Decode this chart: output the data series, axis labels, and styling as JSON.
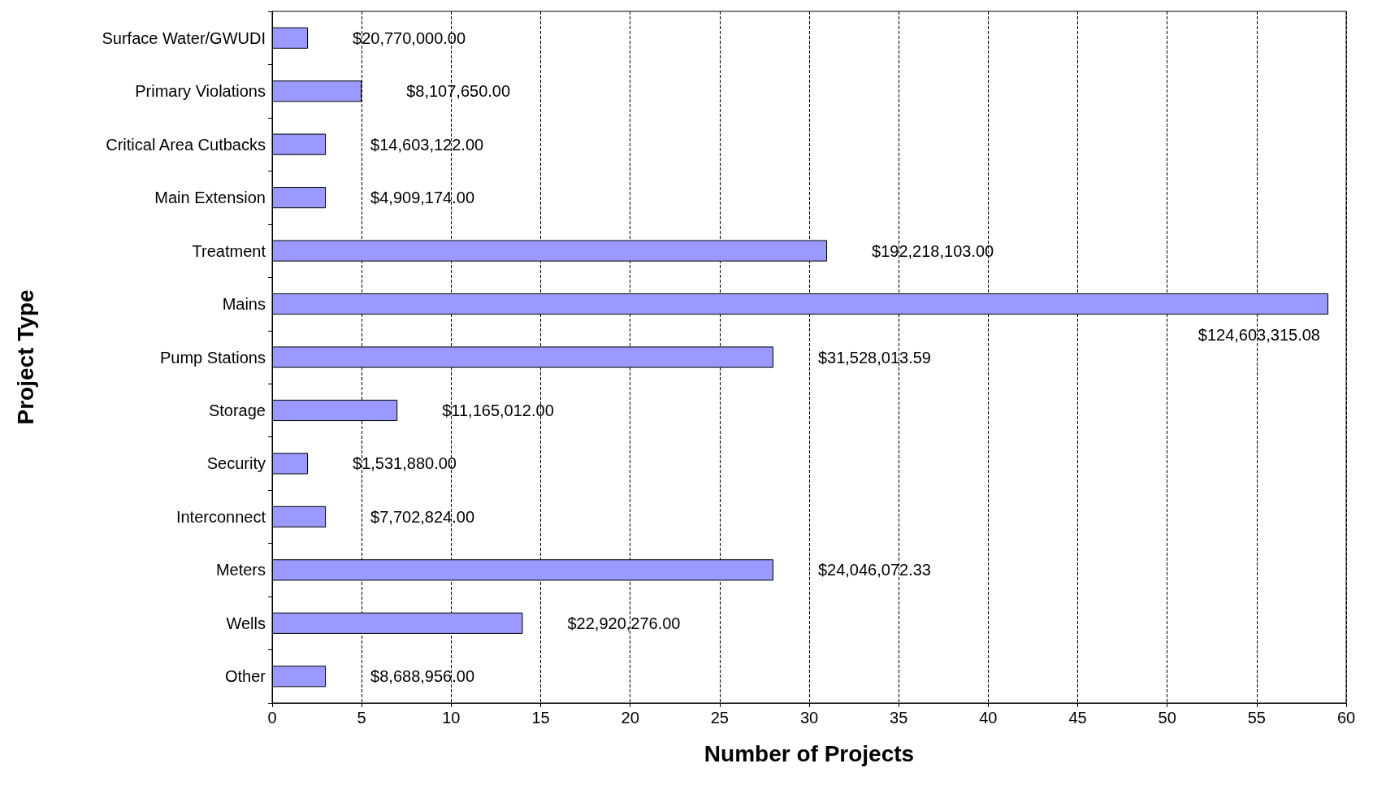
{
  "chart_data": {
    "type": "bar",
    "orientation": "horizontal",
    "xlabel": "Number of Projects",
    "ylabel": "Project Type",
    "categories": [
      "Surface Water/GWUDI",
      "Primary Violations",
      "Critical Area Cutbacks",
      "Main Extension",
      "Treatment",
      "Mains",
      "Pump Stations",
      "Storage",
      "Security",
      "Interconnect",
      "Meters",
      "Wells",
      "Other"
    ],
    "values": [
      2,
      5,
      3,
      3,
      31,
      59,
      28,
      7,
      2,
      3,
      28,
      14,
      3
    ],
    "color": "#9999ff",
    "xlim": [
      0,
      60
    ],
    "xticks": [
      0,
      5,
      10,
      15,
      20,
      25,
      30,
      35,
      40,
      45,
      50,
      55,
      60
    ],
    "grid": "x",
    "annotations": [
      "$20,770,000.00",
      "$8,107,650.00",
      "$14,603,122.00",
      "$4,909,174.00",
      "$192,218,103.00",
      "$124,603,315.08",
      "$31,528,013.59",
      "$11,165,012.00",
      "$1,531,880.00",
      "$7,702,824.00",
      "$24,046,072.33",
      "$22,920,276.00",
      "$8,688,956.00"
    ]
  }
}
